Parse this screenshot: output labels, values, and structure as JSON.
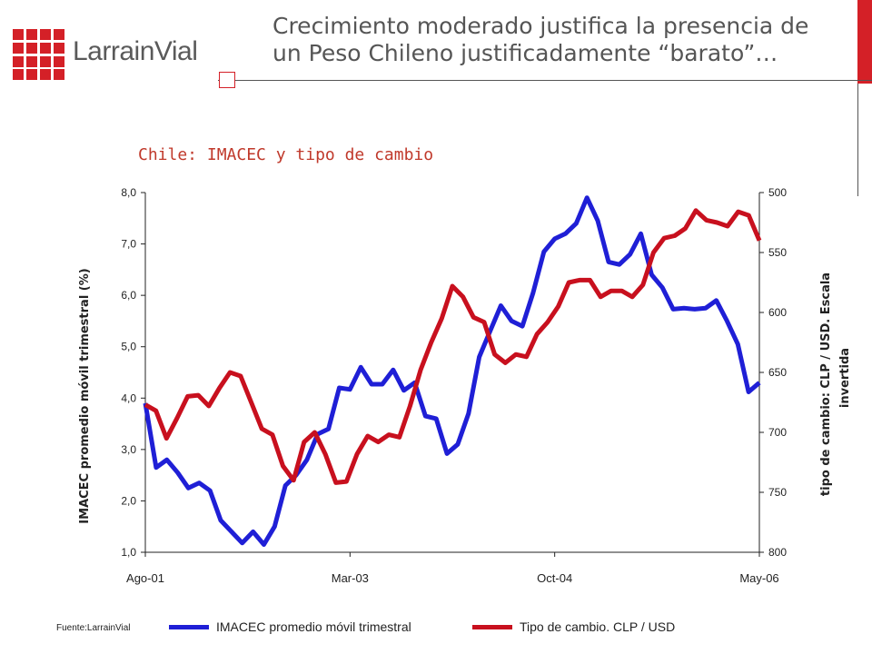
{
  "header": {
    "logo_text": "LarrainVial",
    "title_line1": "Crecimiento moderado justifica la presencia de",
    "title_line2": "un Peso Chileno justificadamente “barato”…"
  },
  "colors": {
    "brand_red": "#d42027",
    "imacec": "#1f1fd6",
    "fx": "#c8101e",
    "title_red": "#c0392b"
  },
  "source": "Fuente:LarrainVial",
  "chart_data": {
    "type": "line",
    "title": "Chile: IMACEC y tipo de cambio",
    "x_ticks": [
      "Ago-01",
      "Mar-03",
      "Oct-04",
      "May-06"
    ],
    "ylabel_left": "IMACEC promedio móvil trimestral (%)",
    "ylabel_right_line1": "tipo de cambio: CLP / USD. Escala",
    "ylabel_right_line2": "invertida",
    "y_left_ticks": [
      "8,0",
      "7,0",
      "6,0",
      "5,0",
      "4,0",
      "3,0",
      "2,0",
      "1,0"
    ],
    "y_right_ticks": [
      "500",
      "550",
      "600",
      "650",
      "700",
      "750",
      "800"
    ],
    "ylim_left": [
      1,
      8
    ],
    "ylim_right_inverted": [
      500,
      800
    ],
    "series": [
      {
        "name": "IMACEC promedio móvil trimestral",
        "axis": "left",
        "values": [
          3.9,
          2.65,
          2.8,
          2.55,
          2.25,
          2.35,
          2.2,
          1.62,
          1.4,
          1.18,
          1.4,
          1.15,
          1.5,
          2.3,
          2.5,
          2.8,
          3.3,
          3.4,
          4.2,
          4.17,
          4.6,
          4.27,
          4.27,
          4.55,
          4.15,
          4.3,
          3.65,
          3.6,
          2.92,
          3.1,
          3.7,
          4.8,
          5.3,
          5.8,
          5.5,
          5.4,
          6.05,
          6.85,
          7.1,
          7.2,
          7.4,
          7.9,
          7.45,
          6.65,
          6.6,
          6.8,
          7.2,
          6.4,
          6.15,
          5.73,
          5.75,
          5.73,
          5.75,
          5.9,
          5.5,
          5.05,
          4.12,
          4.3
        ]
      },
      {
        "name": "Tipo de cambio. CLP / USD",
        "axis": "right",
        "values": [
          677,
          682,
          705,
          688,
          670,
          669,
          678,
          663,
          650,
          653,
          675,
          697,
          702,
          728,
          740,
          708,
          700,
          718,
          742,
          741,
          718,
          703,
          708,
          702,
          704,
          678,
          648,
          625,
          605,
          578,
          587,
          604,
          608,
          635,
          642,
          635,
          637,
          618,
          608,
          595,
          575,
          573,
          573,
          587,
          582,
          582,
          587,
          577,
          550,
          538,
          536,
          530,
          515,
          523,
          525,
          528,
          516,
          519,
          540
        ]
      }
    ]
  }
}
